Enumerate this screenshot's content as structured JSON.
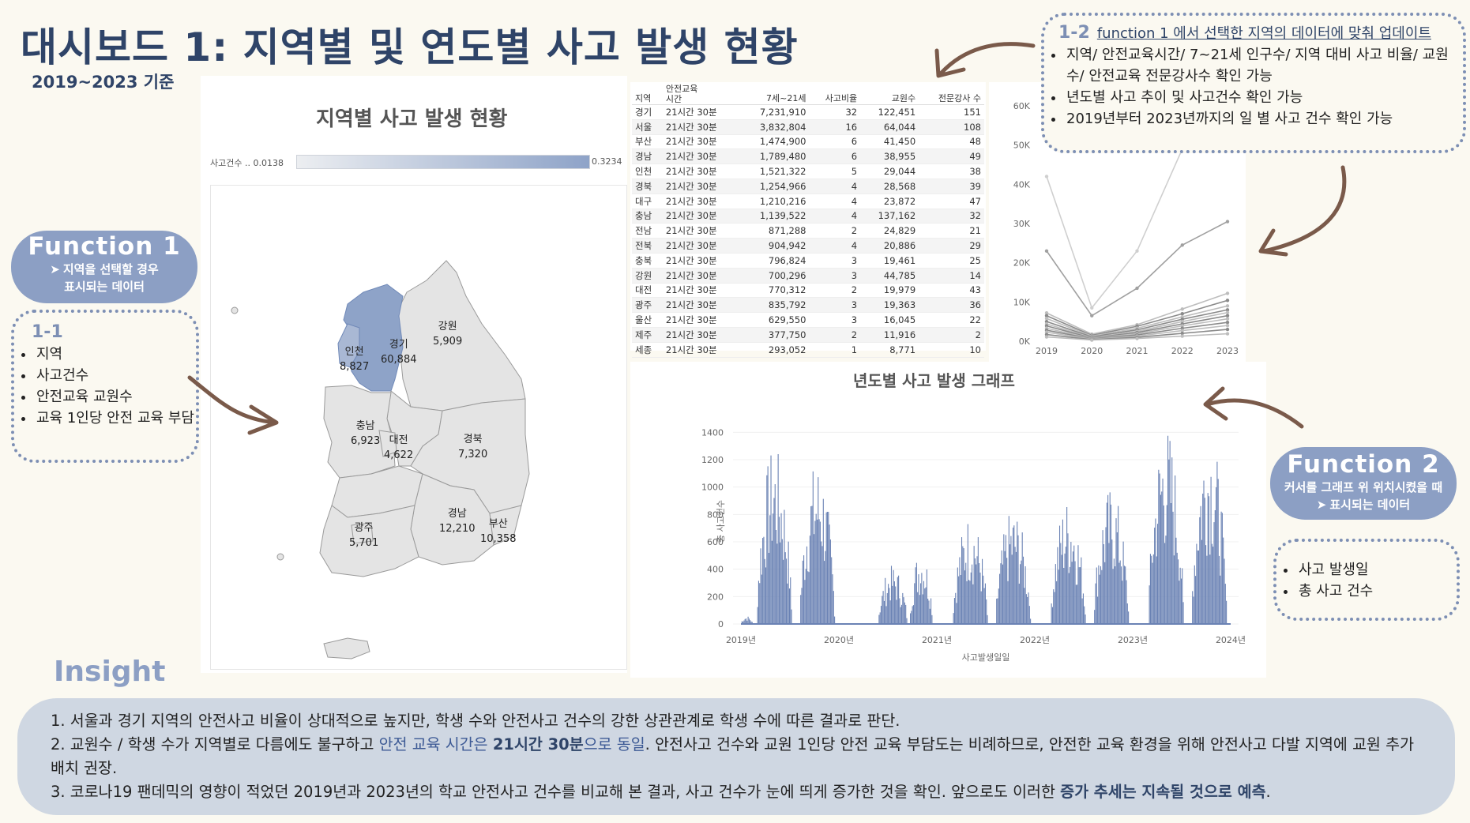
{
  "header": {
    "title": "대시보드 1: 지역별 및 연도별 사고 발생 현황",
    "subtitle": "2019~2023 기준"
  },
  "map": {
    "title": "지역별 사고 발생 현황",
    "legend_label": "사고건수 .. 0.0138",
    "legend_max": "0.3234",
    "highlight_color": "#8ea3c8",
    "base_color": "#e4e4e4",
    "labels": [
      {
        "name": "강원",
        "value": "5,909"
      },
      {
        "name": "경기",
        "value": "60,884"
      },
      {
        "name": "인천",
        "value": "8,827"
      },
      {
        "name": "충남",
        "value": "6,923"
      },
      {
        "name": "대전",
        "value": "4,622"
      },
      {
        "name": "경북",
        "value": "7,320"
      },
      {
        "name": "광주",
        "value": "5,701"
      },
      {
        "name": "경남",
        "value": "12,210"
      },
      {
        "name": "부산",
        "value": "10,358"
      }
    ]
  },
  "table": {
    "headers": [
      "지역",
      "안전교육\n시간",
      "7세~21세",
      "사고비율",
      "교원수",
      "전문강사 수"
    ],
    "rows": [
      [
        "경기",
        "21시간 30분",
        "7,231,910",
        "32",
        "122,451",
        "151"
      ],
      [
        "서울",
        "21시간 30분",
        "3,832,804",
        "16",
        "64,044",
        "108"
      ],
      [
        "부산",
        "21시간 30분",
        "1,474,900",
        "6",
        "41,450",
        "48"
      ],
      [
        "경남",
        "21시간 30분",
        "1,789,480",
        "6",
        "38,955",
        "49"
      ],
      [
        "인천",
        "21시간 30분",
        "1,521,322",
        "5",
        "29,044",
        "38"
      ],
      [
        "경북",
        "21시간 30분",
        "1,254,966",
        "4",
        "28,568",
        "39"
      ],
      [
        "대구",
        "21시간 30분",
        "1,210,216",
        "4",
        "23,872",
        "47"
      ],
      [
        "충남",
        "21시간 30분",
        "1,139,522",
        "4",
        "137,162",
        "32"
      ],
      [
        "전남",
        "21시간 30분",
        "871,288",
        "2",
        "24,829",
        "21"
      ],
      [
        "전북",
        "21시간 30분",
        "904,942",
        "4",
        "20,886",
        "29"
      ],
      [
        "충북",
        "21시간 30분",
        "796,824",
        "3",
        "19,461",
        "25"
      ],
      [
        "강원",
        "21시간 30분",
        "700,296",
        "3",
        "44,785",
        "14"
      ],
      [
        "대전",
        "21시간 30분",
        "770,312",
        "2",
        "19,979",
        "43"
      ],
      [
        "광주",
        "21시간 30분",
        "835,792",
        "3",
        "19,363",
        "36"
      ],
      [
        "울산",
        "21시간 30분",
        "629,550",
        "3",
        "16,045",
        "22"
      ],
      [
        "제주",
        "21시간 30분",
        "377,750",
        "2",
        "11,916",
        "2"
      ],
      [
        "세종",
        "21시간 30분",
        "293,052",
        "1",
        "8,771",
        "10"
      ]
    ]
  },
  "callouts": {
    "function1": {
      "title": "Function 1",
      "line1": "지역을 선택할 경우",
      "line2": "표시되는 데이터"
    },
    "box11": {
      "head": "1-1",
      "items": [
        "지역",
        "사고건수",
        "안전교육 교원수",
        "교육 1인당 안전 교육 부담"
      ]
    },
    "box12": {
      "head": "1-2",
      "head_link": "function 1 에서 선택한 지역의 데이터에 맞춰 업데이트",
      "items": [
        "지역/ 안전교육시간/ 7~21세 인구수/ 지역 대비 사고 비율/ 교원수/ 안전교육 전문강사수 확인 가능",
        "년도별 사고 추이 및 사고건수 확인 가능",
        "2019년부터 2023년까지의 일 별 사고 건수 확인 가능"
      ]
    },
    "function2": {
      "title": "Function 2",
      "line1": "커서를 그래프 위 위치시켰을 때",
      "line2": "표시되는 데이터"
    },
    "box2": {
      "items": [
        "사고 발생일",
        "총 사고 건수"
      ]
    }
  },
  "insight": {
    "title": "Insight",
    "line1": "1. 서울과 경기 지역의 안전사고 비율이 상대적으로 높지만, 학생 수와 안전사고 건수의 강한 상관관계로 학생 수에  따른 결과로 판단.",
    "line2_a": "2. 교원수 / 학생 수가 지역별로 다름에도 불구하고 ",
    "line2_hl1": "안전 교육 시간은 ",
    "line2_hl2": "21시간 30분",
    "line2_hl3": "으로 동일",
    "line2_b": ". 안전사고 건수와  교원 1인당 안전 교육 부담도는 비례하므로, 안전한 교육 환경을 위해 안전사고 다발 지역에 교원 추가 배치 권장.",
    "line3_a": "3. 코로나19 팬데믹의 영향이 적었던 2019년과 2023년의 학교 안전사고 건수를 비교해 본 결과, 사고 건수가 눈에 띄게 증가한 것을 확인. 앞으로도 이러한 ",
    "line3_hl": "증가 추세는 지속될 것으로 예측",
    "line3_b": "."
  },
  "chart_data": [
    {
      "type": "line",
      "x": [
        2019,
        2020,
        2021,
        2022,
        2023
      ],
      "y_ticks": [
        "0K",
        "10K",
        "20K",
        "30K",
        "40K",
        "50K",
        "60K"
      ],
      "ylim": [
        0,
        60000
      ],
      "series": [
        {
          "values": [
            42000,
            8500,
            23000,
            49000,
            62000
          ]
        },
        {
          "values": [
            23000,
            6500,
            13500,
            24500,
            30500
          ]
        },
        {
          "values": [
            7200,
            1800,
            4200,
            8200,
            12200
          ]
        },
        {
          "values": [
            6500,
            1500,
            3800,
            7000,
            10400
          ]
        },
        {
          "values": [
            5800,
            1300,
            3300,
            6200,
            9000
          ]
        },
        {
          "values": [
            5000,
            1100,
            2900,
            5600,
            8000
          ]
        },
        {
          "values": [
            4400,
            900,
            2500,
            5000,
            7300
          ]
        },
        {
          "values": [
            3900,
            800,
            2200,
            4400,
            6500
          ]
        },
        {
          "values": [
            3300,
            700,
            1900,
            3900,
            5700
          ]
        },
        {
          "values": [
            2800,
            600,
            1600,
            3300,
            4800
          ]
        },
        {
          "values": [
            2300,
            500,
            1300,
            2700,
            4000
          ]
        },
        {
          "values": [
            1700,
            400,
            1000,
            2000,
            3000
          ]
        },
        {
          "values": [
            1100,
            300,
            700,
            1300,
            1900
          ]
        }
      ]
    },
    {
      "type": "area",
      "title": "년도별 사고 발생 그래프",
      "xlabel": "사고발생일일",
      "ylabel": "총 사고건수",
      "ylim": [
        0,
        1500
      ],
      "y_ticks": [
        0,
        200,
        400,
        600,
        800,
        1000,
        1200,
        1400
      ],
      "x_ticks": [
        "2019년",
        "2020년",
        "2021년",
        "2022년",
        "2023년",
        "2024년"
      ],
      "color": "#6a82b4",
      "segments": [
        {
          "start": 2019.0,
          "end": 2019.12,
          "peak": 60
        },
        {
          "start": 2019.16,
          "end": 2019.52,
          "peak": 1300
        },
        {
          "start": 2019.6,
          "end": 2019.96,
          "peak": 1200
        },
        {
          "start": 2020.4,
          "end": 2020.7,
          "peak": 430
        },
        {
          "start": 2020.72,
          "end": 2020.96,
          "peak": 560
        },
        {
          "start": 2021.16,
          "end": 2021.52,
          "peak": 800
        },
        {
          "start": 2021.6,
          "end": 2021.96,
          "peak": 840
        },
        {
          "start": 2022.16,
          "end": 2022.52,
          "peak": 920
        },
        {
          "start": 2022.6,
          "end": 2022.96,
          "peak": 1000
        },
        {
          "start": 2023.16,
          "end": 2023.52,
          "peak": 1460
        },
        {
          "start": 2023.6,
          "end": 2023.96,
          "peak": 1440
        }
      ]
    }
  ]
}
